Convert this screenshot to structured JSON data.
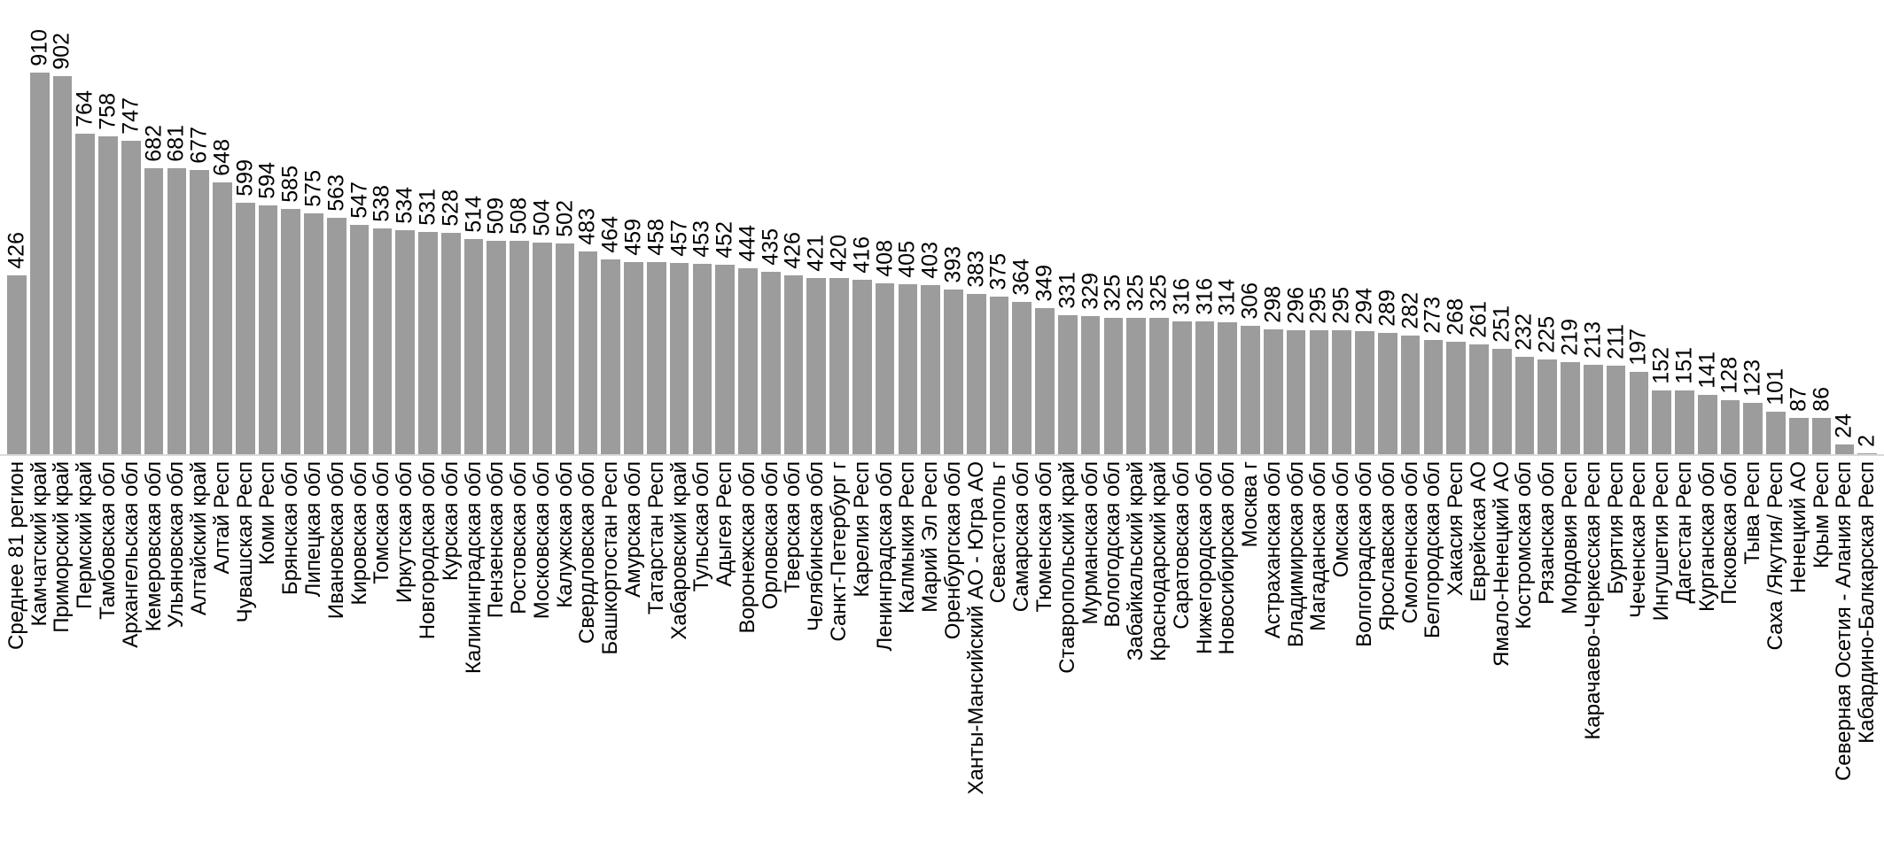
{
  "chart_data": {
    "type": "bar",
    "title": "",
    "xlabel": "",
    "ylabel": "",
    "ylim": [
      0,
      910
    ],
    "grid": false,
    "legend": false,
    "value_labels": "rotated 90deg above bars",
    "category_labels": "rotated 90deg below axis",
    "bar_color": "#9c9c9c",
    "axis_line_color": "#d9d9d9",
    "categories": [
      "Среднее 81 регион",
      "Камчатский край",
      "Приморский край",
      "Пермский край",
      "Тамбовская обл",
      "Архангельская обл",
      "Кемеровская обл",
      "Ульяновская обл",
      "Алтайский край",
      "Алтай Респ",
      "Чувашская Респ",
      "Коми Респ",
      "Брянская обл",
      "Липецкая обл",
      "Ивановская обл",
      "Кировская обл",
      "Томская обл",
      "Иркутская обл",
      "Новгородская обл",
      "Курская обл",
      "Калининградская обл",
      "Пензенская обл",
      "Ростовская обл",
      "Московская обл",
      "Калужская обл",
      "Свердловская обл",
      "Башкортостан Респ",
      "Амурская обл",
      "Татарстан Респ",
      "Хабаровский край",
      "Тульская обл",
      "Адыгея Респ",
      "Воронежская обл",
      "Орловская обл",
      "Тверская обл",
      "Челябинская обл",
      "Санкт-Петербург г",
      "Карелия Респ",
      "Ленинградская обл",
      "Калмыкия Респ",
      "Марий Эл Респ",
      "Оренбургская обл",
      "Ханты-Мансийский АО - Югра АО",
      "Севастополь г",
      "Самарская обл",
      "Тюменская обл",
      "Ставропольский край",
      "Мурманская обл",
      "Вологодская обл",
      "Забайкальский край",
      "Краснодарский край",
      "Саратовская обл",
      "Нижегородская обл",
      "Новосибирская обл",
      "Москва г",
      "Астраханская обл",
      "Владимирская обл",
      "Магаданская обл",
      "Омская обл",
      "Волгоградская обл",
      "Ярославская обл",
      "Смоленская обл",
      "Белгородская обл",
      "Хакасия Респ",
      "Еврейская АО",
      "Ямало-Ненецкий АО",
      "Костромская обл",
      "Рязанская обл",
      "Мордовия Респ",
      "Карачаево-Черкесская Респ",
      "Бурятия Респ",
      "Чеченская Респ",
      "Ингушетия Респ",
      "Дагестан Респ",
      "Курганская обл",
      "Псковская обл",
      "Тыва Респ",
      "Саха /Якутия/ Респ",
      "Ненецкий АО",
      "Крым Респ",
      "Северная Осетия - Алания Респ",
      "Кабардино-Балкарская Респ"
    ],
    "values": [
      426,
      910,
      902,
      764,
      758,
      747,
      682,
      681,
      677,
      648,
      599,
      594,
      585,
      575,
      563,
      547,
      538,
      534,
      531,
      528,
      514,
      509,
      508,
      504,
      502,
      483,
      464,
      459,
      458,
      457,
      453,
      452,
      444,
      435,
      426,
      421,
      420,
      416,
      408,
      405,
      403,
      393,
      383,
      375,
      364,
      349,
      331,
      329,
      325,
      325,
      325,
      316,
      316,
      314,
      306,
      298,
      296,
      295,
      295,
      294,
      289,
      282,
      273,
      268,
      261,
      251,
      232,
      225,
      219,
      213,
      211,
      197,
      152,
      151,
      141,
      128,
      123,
      101,
      87,
      86,
      24,
      2
    ]
  }
}
